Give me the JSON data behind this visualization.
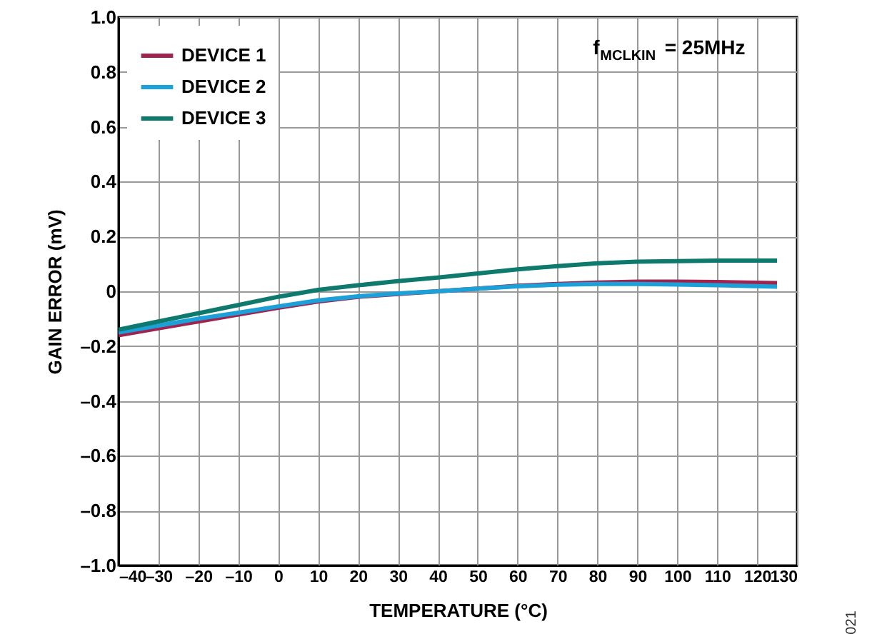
{
  "chart_data": {
    "type": "line",
    "xlabel": "TEMPERATURE (°C)",
    "ylabel": "GAIN ERROR (mV)",
    "annotations": [
      "f$_{MCLKIN}$ = 25MHz",
      "021"
    ],
    "x": [
      -40,
      -30,
      -20,
      -10,
      0,
      10,
      20,
      30,
      40,
      50,
      60,
      70,
      80,
      90,
      100,
      110,
      125
    ],
    "series": [
      {
        "name": "DEVICE 1",
        "color": "#a0234f",
        "values": [
          -0.16,
          -0.135,
          -0.11,
          -0.085,
          -0.06,
          -0.037,
          -0.02,
          -0.01,
          0.0,
          0.01,
          0.02,
          0.027,
          0.032,
          0.035,
          0.035,
          0.034,
          0.03
        ]
      },
      {
        "name": "DEVICE 2",
        "color": "#1ba1d8",
        "values": [
          -0.15,
          -0.125,
          -0.1,
          -0.078,
          -0.055,
          -0.033,
          -0.018,
          -0.008,
          0.0,
          0.01,
          0.018,
          0.024,
          0.027,
          0.027,
          0.025,
          0.022,
          0.017
        ]
      },
      {
        "name": "DEVICE 3",
        "color": "#0e7a6e",
        "values": [
          -0.14,
          -0.11,
          -0.08,
          -0.05,
          -0.02,
          0.005,
          0.022,
          0.037,
          0.05,
          0.065,
          0.08,
          0.092,
          0.102,
          0.108,
          0.11,
          0.112,
          0.112
        ]
      }
    ],
    "xlim": [
      -40,
      130
    ],
    "xticks": [
      {
        "value": -40,
        "label": "–40"
      },
      {
        "value": -30,
        "label": "–30"
      },
      {
        "value": -20,
        "label": "–20"
      },
      {
        "value": -10,
        "label": "–10"
      },
      0,
      10,
      20,
      30,
      40,
      50,
      60,
      70,
      80,
      90,
      100,
      110,
      120,
      130
    ],
    "ylim": [
      -1,
      1
    ],
    "yticks": [
      {
        "value": -1,
        "label": "–1.0"
      },
      {
        "value": -0.8,
        "label": "–0.8"
      },
      {
        "value": -0.6,
        "label": "–0.6"
      },
      {
        "value": -0.4,
        "label": "–0.4"
      },
      {
        "value": -0.2,
        "label": "–0.2"
      },
      0,
      0.2,
      0.4,
      0.6,
      0.8,
      {
        "value": 1,
        "label": "1.0"
      }
    ],
    "grid": true,
    "legend": "top left",
    "marker": "none",
    "line_style": "solid"
  }
}
